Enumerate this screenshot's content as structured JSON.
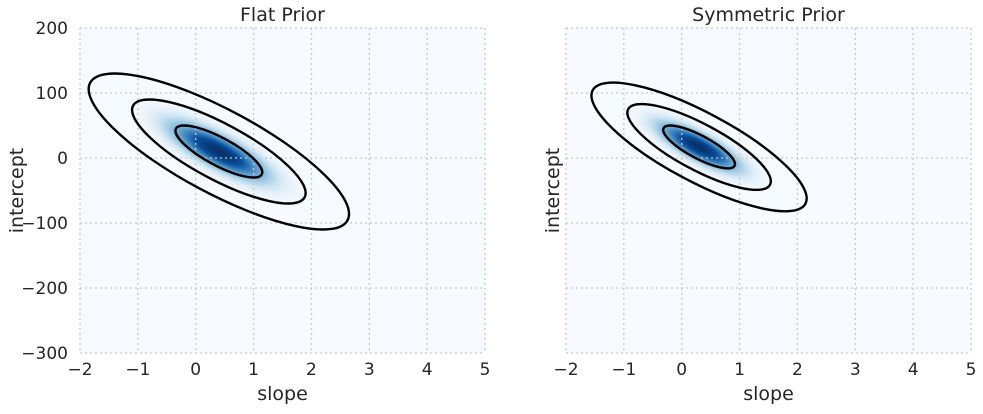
{
  "chart_data": [
    {
      "type": "contour",
      "title": "Flat Prior",
      "xlabel": "slope",
      "ylabel": "intercept",
      "xlim": [
        -2,
        5
      ],
      "ylim": [
        -300,
        200
      ],
      "xticks": [
        "−2",
        "−1",
        "0",
        "1",
        "2",
        "3",
        "4",
        "5"
      ],
      "yticks": [
        "200",
        "100",
        "0",
        "−100",
        "−200",
        "−300"
      ],
      "show_yticklabels": true,
      "grid": true,
      "colormap": "Blues",
      "posterior": {
        "mean_slope": 0.4,
        "mean_intercept": 10,
        "sd_slope": 0.75,
        "sd_intercept": 40,
        "correlation": -0.8
      },
      "contour_levels_sigma": [
        1,
        2,
        3
      ]
    },
    {
      "type": "contour",
      "title": "Symmetric Prior",
      "xlabel": "slope",
      "ylabel": "intercept",
      "xlim": [
        -2,
        5
      ],
      "ylim": [
        -300,
        200
      ],
      "xticks": [
        "−2",
        "−1",
        "0",
        "1",
        "2",
        "3",
        "4",
        "5"
      ],
      "yticks": [
        "200",
        "100",
        "0",
        "−100",
        "−200",
        "−300"
      ],
      "show_yticklabels": false,
      "grid": true,
      "colormap": "Blues",
      "posterior": {
        "mean_slope": 0.3,
        "mean_intercept": 17,
        "sd_slope": 0.62,
        "sd_intercept": 33,
        "correlation": -0.8
      },
      "contour_levels_sigma": [
        1,
        2,
        3
      ]
    }
  ]
}
